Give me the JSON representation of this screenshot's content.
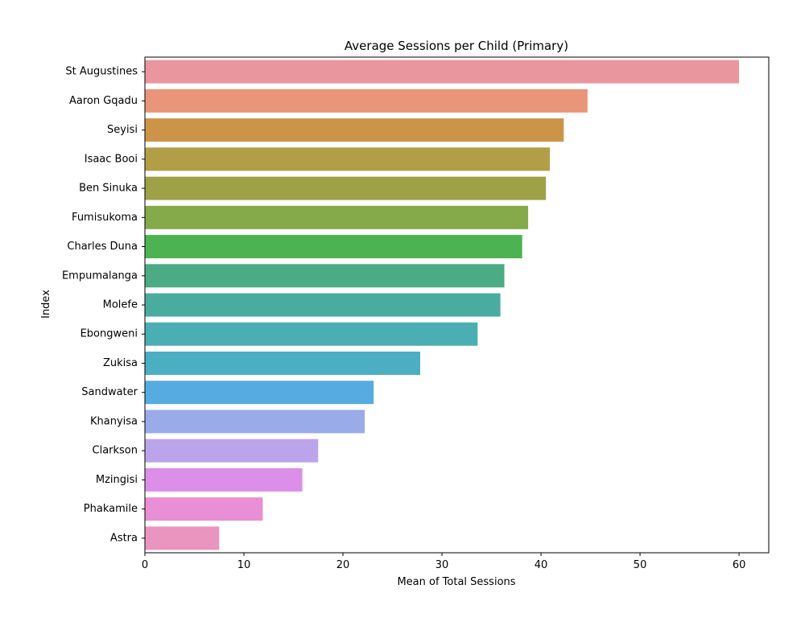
{
  "chart_data": {
    "type": "bar",
    "orientation": "horizontal",
    "title": "Average Sessions per Child (Primary)",
    "xlabel": "Mean of Total Sessions",
    "ylabel": "Index",
    "xlim": [
      0,
      63
    ],
    "xticks": [
      0,
      10,
      20,
      30,
      40,
      50,
      60
    ],
    "grid": false,
    "categories": [
      "St Augustines",
      "Aaron Gqadu",
      "Seyisi",
      "Isaac Booi",
      "Ben Sinuka",
      "Fumisukoma",
      "Charles Duna",
      "Empumalanga",
      "Molefe",
      "Ebongweni",
      "Zukisa",
      "Sandwater",
      "Khanyisa",
      "Clarkson",
      "Mzingisi",
      "Phakamile",
      "Astra"
    ],
    "values": [
      60.0,
      44.7,
      42.3,
      40.9,
      40.5,
      38.7,
      38.1,
      36.3,
      35.9,
      33.6,
      27.8,
      23.1,
      22.2,
      17.5,
      15.9,
      11.9,
      7.5
    ],
    "colors": [
      "#e9969f",
      "#e8957a",
      "#cc9449",
      "#b29e47",
      "#9ea145",
      "#85aa4a",
      "#4bb351",
      "#4aab84",
      "#4aac9f",
      "#4baeb2",
      "#4baec3",
      "#56ace0",
      "#99abe8",
      "#bca4ea",
      "#db8fe8",
      "#e88fd5",
      "#ea94c0"
    ]
  }
}
